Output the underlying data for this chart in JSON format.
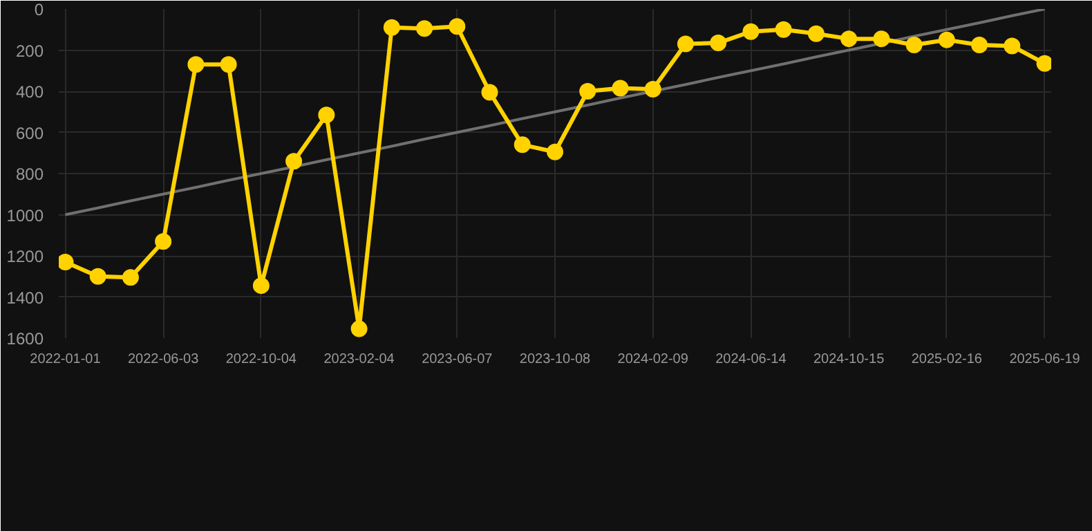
{
  "chart_data": {
    "type": "line",
    "categories": [
      "2022-01-01",
      null,
      null,
      "2022-06-03",
      null,
      null,
      "2022-10-04",
      null,
      null,
      "2023-02-04",
      null,
      null,
      "2023-06-07",
      null,
      null,
      "2023-10-08",
      null,
      null,
      "2024-02-09",
      null,
      null,
      "2024-06-14",
      null,
      null,
      "2024-10-15",
      null,
      null,
      "2025-02-16",
      null,
      null,
      "2025-06-19"
    ],
    "series": [
      {
        "color": "#ffd200",
        "marker": "circle",
        "values": [
          1230,
          1300,
          1305,
          1130,
          270,
          270,
          1345,
          740,
          515,
          1555,
          90,
          95,
          85,
          405,
          660,
          695,
          400,
          385,
          390,
          170,
          165,
          110,
          100,
          120,
          145,
          145,
          175,
          150,
          175,
          180,
          265
        ]
      },
      {
        "type": "line",
        "color": "#707070",
        "marker": "none",
        "values": [
          1000,
          967,
          933,
          900,
          867,
          833,
          800,
          767,
          733,
          700,
          667,
          633,
          600,
          567,
          533,
          500,
          467,
          433,
          400,
          367,
          333,
          300,
          267,
          233,
          200,
          167,
          133,
          100,
          67,
          33,
          0
        ]
      }
    ],
    "ylim": [
      1600,
      0
    ],
    "yticks": [
      0,
      200,
      400,
      600,
      800,
      1000,
      1200,
      1400,
      1600
    ],
    "grid": true
  }
}
